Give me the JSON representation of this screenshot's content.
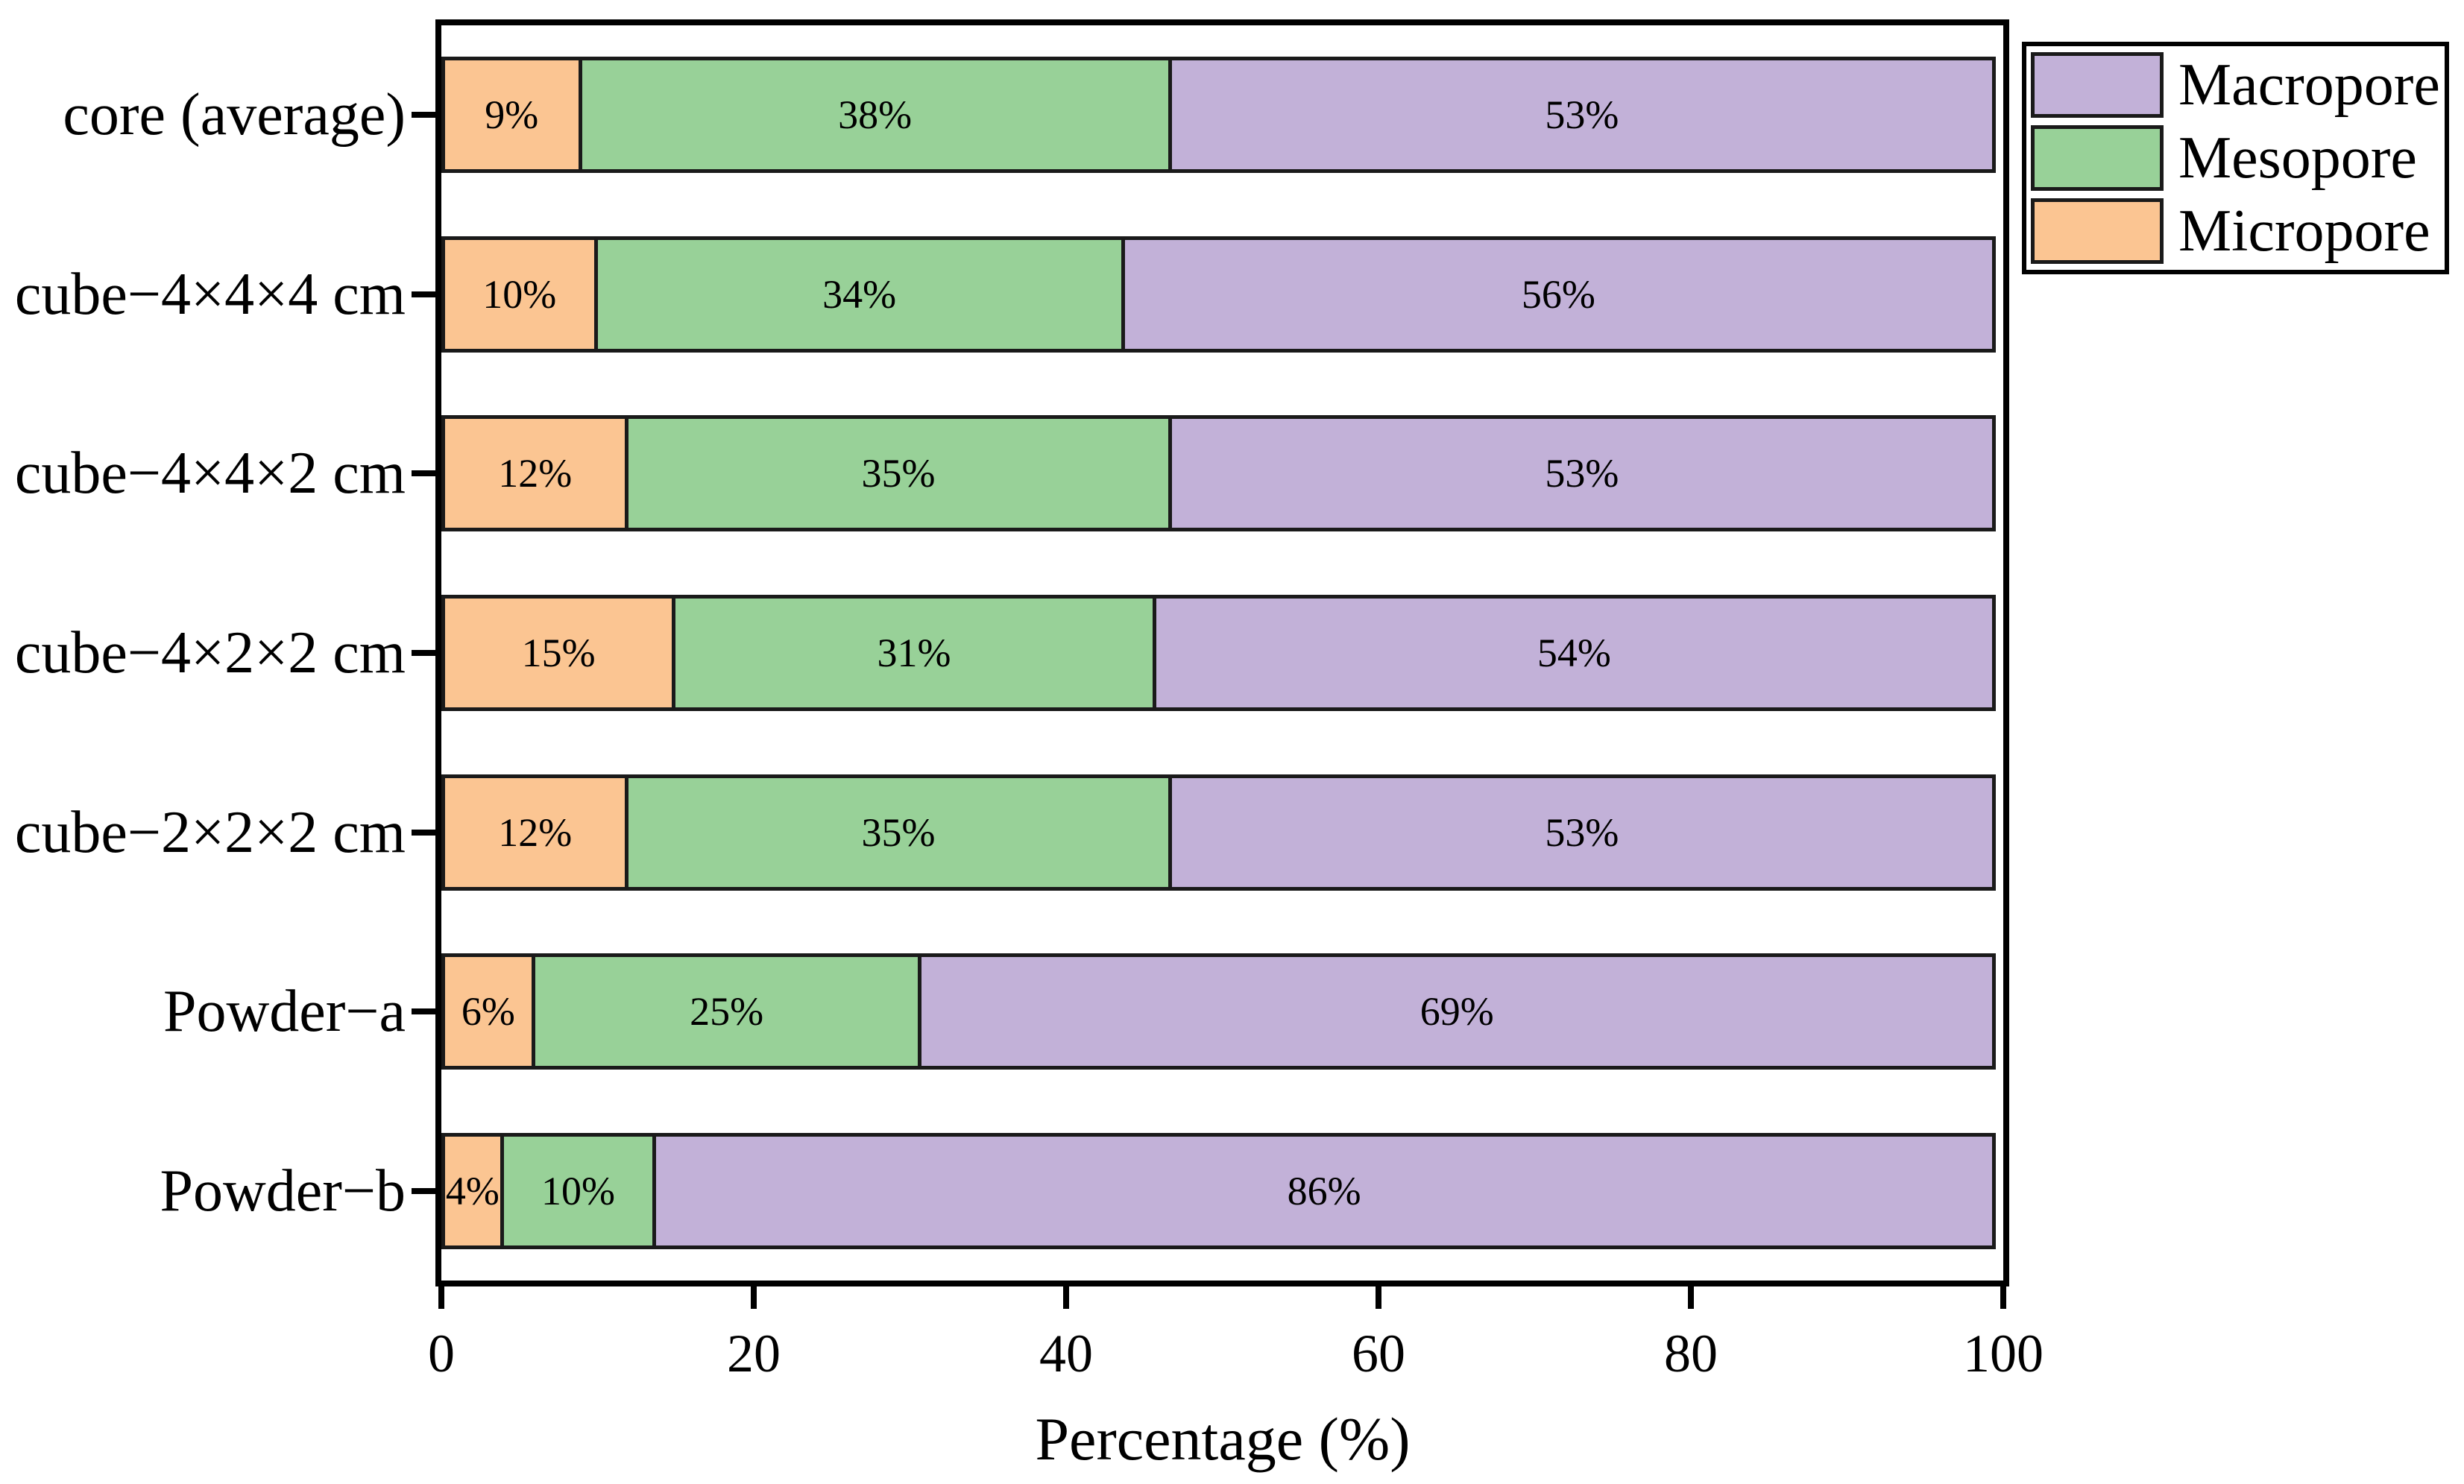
{
  "chart_data": {
    "type": "bar",
    "orientation": "horizontal",
    "stacked": true,
    "title": "",
    "xlabel": "Percentage (%)",
    "ylabel": "",
    "xlim": [
      0,
      100
    ],
    "xticks": [
      0,
      20,
      40,
      60,
      80,
      100
    ],
    "grid": false,
    "legend_position": "top-right",
    "bar_label_suffix": "%",
    "categories": [
      "core (average)",
      "cube−4×4×4 cm",
      "cube−4×4×2 cm",
      "cube−4×2×2 cm",
      "cube−2×2×2 cm",
      "Powder−a",
      "Powder−b"
    ],
    "series": [
      {
        "name": "Micropore",
        "color": "#FBC592",
        "values": [
          9,
          10,
          12,
          15,
          12,
          6,
          4
        ]
      },
      {
        "name": "Mesopore",
        "color": "#98D198",
        "values": [
          38,
          34,
          35,
          31,
          35,
          25,
          10
        ]
      },
      {
        "name": "Macropore",
        "color": "#C2B1D8",
        "values": [
          53,
          56,
          53,
          54,
          53,
          69,
          86
        ]
      }
    ],
    "legend_entries": [
      "Macropore",
      "Mesopore",
      "Micropore"
    ]
  },
  "styles": {
    "bar_border_color": "#1a1a1a",
    "axis_color": "#000000",
    "background": "#ffffff",
    "text_color": "#000000"
  }
}
